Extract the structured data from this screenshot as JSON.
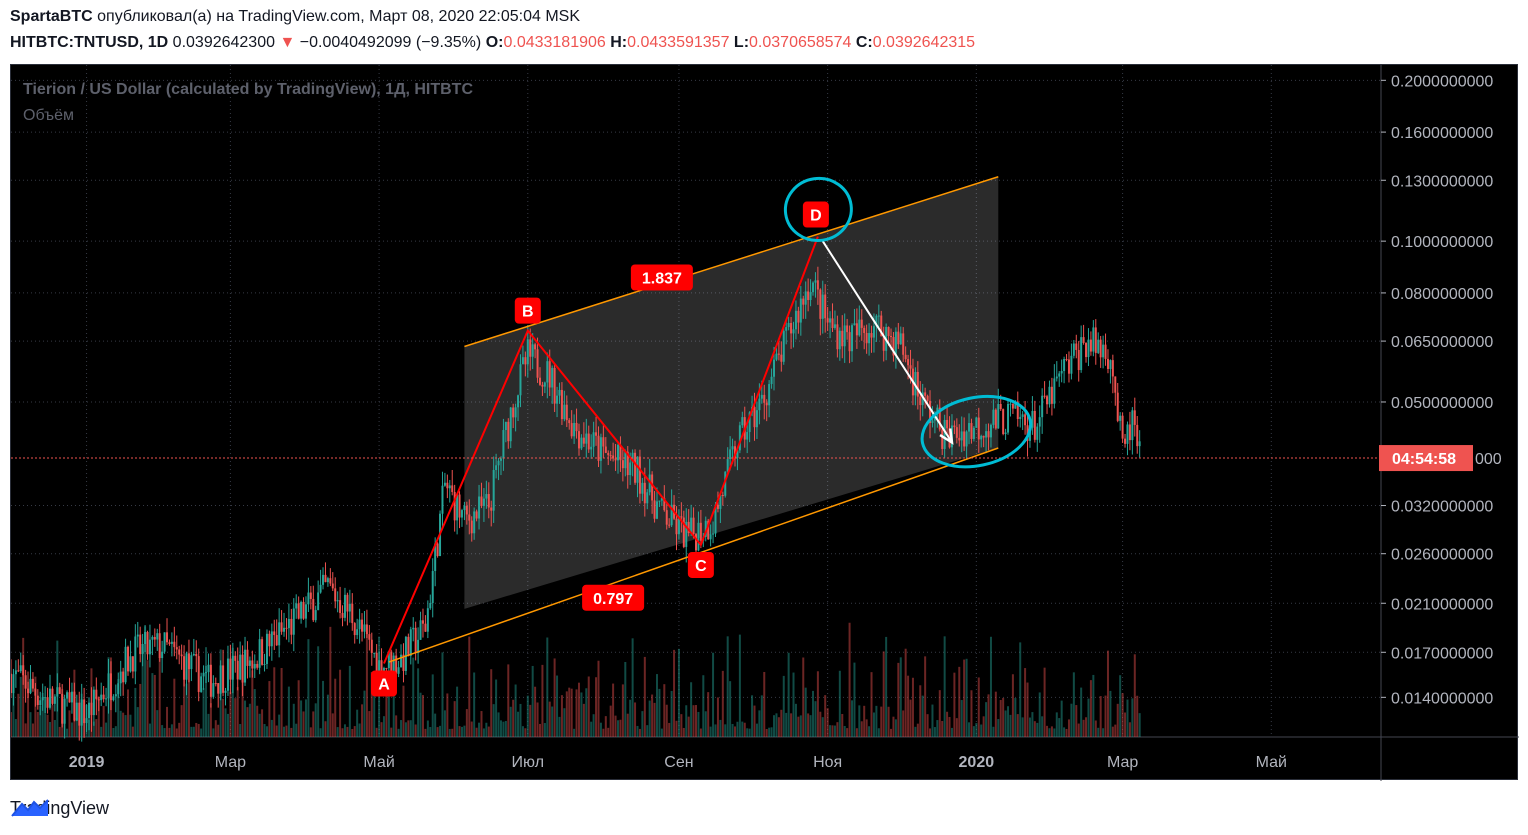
{
  "header": {
    "author": "SpartaBTC",
    "published_text": " опубликовал(а) на TradingView.com, Март 08, 2020 22:05:04 MSK",
    "symbol": "HITBTC:TNTUSD, 1D",
    "price": "0.0392642300",
    "change_arrow": "▼",
    "change": "−0.0040492099 (−9.35%)",
    "o_label": "O:",
    "o_value": "0.0433181906",
    "h_label": "H:",
    "h_value": "0.0433591357",
    "l_label": "L:",
    "l_value": "0.0370658574",
    "c_label": "C:",
    "c_value": "0.0392642315"
  },
  "chart_data": {
    "type": "candlestick",
    "title": "Tierion / US Dollar (calculated by TradingView), 1Д, HITBTC",
    "subtitle": "Объём",
    "y_scale": "log",
    "y_ticks": [
      "0.2000000000",
      "0.1600000000",
      "0.1300000000",
      "0.1000000000",
      "0.0800000000",
      "0.0650000000",
      "0.0500000000",
      "0.0320000000",
      "0.0260000000",
      "0.0210000000",
      "0.0170000000",
      "0.0140000000"
    ],
    "y_tick_values": [
      0.2,
      0.16,
      0.13,
      0.1,
      0.08,
      0.065,
      0.05,
      0.032,
      0.026,
      0.021,
      0.017,
      0.014
    ],
    "ylim": [
      0.0118,
      0.21
    ],
    "x_ticks": [
      "2019",
      "Мар",
      "Май",
      "Июл",
      "Сен",
      "Ноя",
      "2020",
      "Мар",
      "Май"
    ],
    "x_tick_dates": [
      "2019-01-01",
      "2019-03-01",
      "2019-05-01",
      "2019-07-01",
      "2019-09-01",
      "2019-11-01",
      "2020-01-01",
      "2020-03-01",
      "2020-05-01"
    ],
    "xlim": [
      "2018-12-01",
      "2020-06-15"
    ],
    "price_line": 0.03926423,
    "countdown": "04:54:58",
    "countdown_value_suffix": "000",
    "close_path": [
      [
        "2018-12-01",
        0.0155
      ],
      [
        "2018-12-15",
        0.014
      ],
      [
        "2019-01-01",
        0.013
      ],
      [
        "2019-01-20",
        0.017
      ],
      [
        "2019-02-01",
        0.0175
      ],
      [
        "2019-02-20",
        0.015
      ],
      [
        "2019-03-10",
        0.0165
      ],
      [
        "2019-03-25",
        0.019
      ],
      [
        "2019-04-10",
        0.0225
      ],
      [
        "2019-04-20",
        0.02
      ],
      [
        "2019-05-01",
        0.016
      ],
      [
        "2019-05-10",
        0.0165
      ],
      [
        "2019-05-20",
        0.019
      ],
      [
        "2019-05-28",
        0.035
      ],
      [
        "2019-06-05",
        0.03
      ],
      [
        "2019-06-15",
        0.032
      ],
      [
        "2019-06-25",
        0.05
      ],
      [
        "2019-07-01",
        0.061
      ],
      [
        "2019-07-10",
        0.056
      ],
      [
        "2019-07-20",
        0.045
      ],
      [
        "2019-08-01",
        0.04
      ],
      [
        "2019-08-15",
        0.037
      ],
      [
        "2019-08-25",
        0.031
      ],
      [
        "2019-09-05",
        0.028
      ],
      [
        "2019-09-15",
        0.03
      ],
      [
        "2019-09-25",
        0.042
      ],
      [
        "2019-10-05",
        0.05
      ],
      [
        "2019-10-15",
        0.065
      ],
      [
        "2019-10-25",
        0.085
      ],
      [
        "2019-11-01",
        0.07
      ],
      [
        "2019-11-10",
        0.066
      ],
      [
        "2019-11-20",
        0.07
      ],
      [
        "2019-12-01",
        0.064
      ],
      [
        "2019-12-10",
        0.05
      ],
      [
        "2019-12-20",
        0.043
      ],
      [
        "2020-01-01",
        0.045
      ],
      [
        "2020-01-15",
        0.047
      ],
      [
        "2020-01-25",
        0.045
      ],
      [
        "2020-02-05",
        0.056
      ],
      [
        "2020-02-15",
        0.065
      ],
      [
        "2020-02-25",
        0.062
      ],
      [
        "2020-03-01",
        0.04
      ],
      [
        "2020-03-05",
        0.046
      ],
      [
        "2020-03-08",
        0.0392
      ]
    ],
    "channel": {
      "upper": [
        [
          "2019-06-05",
          0.0635
        ],
        [
          "2020-01-10",
          0.132
        ]
      ],
      "lower": [
        [
          "2019-06-05",
          0.0205
        ],
        [
          "2020-01-10",
          0.041
        ]
      ],
      "lower_ext_start": [
        "2019-05-05",
        0.0163
      ],
      "color": "#ff9800"
    },
    "pattern": {
      "points": [
        {
          "label": "A",
          "date": "2019-05-03",
          "value": 0.0162
        },
        {
          "label": "B",
          "date": "2019-07-01",
          "value": 0.068
        },
        {
          "label": "C",
          "date": "2019-09-10",
          "value": 0.027
        },
        {
          "label": "D",
          "date": "2019-10-28",
          "value": 0.102
        }
      ],
      "ratios": [
        {
          "label": "1.837",
          "date": "2019-08-25",
          "value": 0.0855
        },
        {
          "label": "0.797",
          "date": "2019-08-05",
          "value": 0.0215
        }
      ],
      "color": "#ff0000"
    },
    "arrow": {
      "from": [
        "2019-10-30",
        0.1
      ],
      "to": [
        "2019-12-22",
        0.042
      ],
      "color": "#ffffff"
    },
    "highlights_color": "#00bcd4",
    "colors": {
      "up": "#26a69a",
      "down": "#ef5350",
      "background": "#000000",
      "grid": "#363a45",
      "axis_text": "#b2b5be",
      "badge": "#ff0000"
    }
  },
  "footer": {
    "brand": "TradingView",
    "logo_icon": "tradingview-logo-icon"
  }
}
